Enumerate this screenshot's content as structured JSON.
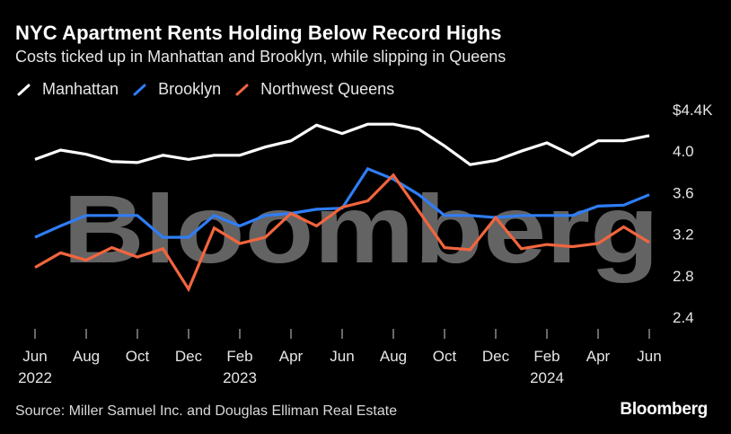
{
  "header": {
    "title": "NYC Apartment Rents Holding Below Record Highs",
    "subtitle": "Costs ticked up in Manhattan and Brooklyn, while slipping in Queens"
  },
  "legend": [
    {
      "label": "Manhattan",
      "color": "#ffffff"
    },
    {
      "label": "Brooklyn",
      "color": "#2f7df6"
    },
    {
      "label": "Northwest Queens",
      "color": "#f2653e"
    }
  ],
  "watermark": "Bloomberg",
  "footer": {
    "source": "Source: Miller Samuel Inc. and Douglas Elliman Real Estate",
    "brand": "Bloomberg"
  },
  "chart_data": {
    "type": "line",
    "x": [
      "Jun 2022",
      "Jul 2022",
      "Aug 2022",
      "Sep 2022",
      "Oct 2022",
      "Nov 2022",
      "Dec 2022",
      "Jan 2023",
      "Feb 2023",
      "Mar 2023",
      "Apr 2023",
      "May 2023",
      "Jun 2023",
      "Jul 2023",
      "Aug 2023",
      "Sep 2023",
      "Oct 2023",
      "Nov 2023",
      "Dec 2023",
      "Jan 2024",
      "Feb 2024",
      "Mar 2024",
      "Apr 2024",
      "May 2024",
      "Jun 2024"
    ],
    "x_tick_labels": [
      {
        "index": 0,
        "month": "Jun",
        "year": "2022"
      },
      {
        "index": 2,
        "month": "Aug",
        "year": ""
      },
      {
        "index": 4,
        "month": "Oct",
        "year": ""
      },
      {
        "index": 6,
        "month": "Dec",
        "year": ""
      },
      {
        "index": 8,
        "month": "Feb",
        "year": "2023"
      },
      {
        "index": 10,
        "month": "Apr",
        "year": ""
      },
      {
        "index": 12,
        "month": "Jun",
        "year": ""
      },
      {
        "index": 14,
        "month": "Aug",
        "year": ""
      },
      {
        "index": 16,
        "month": "Oct",
        "year": ""
      },
      {
        "index": 18,
        "month": "Dec",
        "year": ""
      },
      {
        "index": 20,
        "month": "Feb",
        "year": "2024"
      },
      {
        "index": 22,
        "month": "Apr",
        "year": ""
      },
      {
        "index": 24,
        "month": "Jun",
        "year": ""
      }
    ],
    "y_ticks": [
      {
        "value": 4.4,
        "label": "$4.4K"
      },
      {
        "value": 4.0,
        "label": "4.0"
      },
      {
        "value": 3.6,
        "label": "3.6"
      },
      {
        "value": 3.2,
        "label": "3.2"
      },
      {
        "value": 2.8,
        "label": "2.8"
      },
      {
        "value": 2.4,
        "label": "2.4"
      }
    ],
    "ylim": [
      2.3,
      4.4
    ],
    "y_unit": "$K",
    "grid": false,
    "legend_position": "top-left",
    "series": [
      {
        "name": "Manhattan",
        "color": "#ffffff",
        "values": [
          3.92,
          4.01,
          3.97,
          3.9,
          3.89,
          3.96,
          3.92,
          3.96,
          3.96,
          4.04,
          4.1,
          4.25,
          4.17,
          4.26,
          4.26,
          4.21,
          4.05,
          3.87,
          3.91,
          4.0,
          4.08,
          3.96,
          4.1,
          4.1,
          4.15
        ]
      },
      {
        "name": "Brooklyn",
        "color": "#2f7df6",
        "values": [
          3.17,
          3.28,
          3.38,
          3.38,
          3.38,
          3.17,
          3.17,
          3.38,
          3.28,
          3.38,
          3.4,
          3.44,
          3.45,
          3.83,
          3.73,
          3.58,
          3.38,
          3.38,
          3.36,
          3.38,
          3.38,
          3.38,
          3.47,
          3.48,
          3.58
        ]
      },
      {
        "name": "Northwest Queens",
        "color": "#f2653e",
        "values": [
          2.88,
          3.02,
          2.95,
          3.07,
          2.98,
          3.06,
          2.67,
          3.26,
          3.11,
          3.17,
          3.4,
          3.28,
          3.46,
          3.52,
          3.77,
          3.42,
          3.07,
          3.05,
          3.36,
          3.06,
          3.1,
          3.08,
          3.11,
          3.27,
          3.12
        ]
      }
    ]
  }
}
